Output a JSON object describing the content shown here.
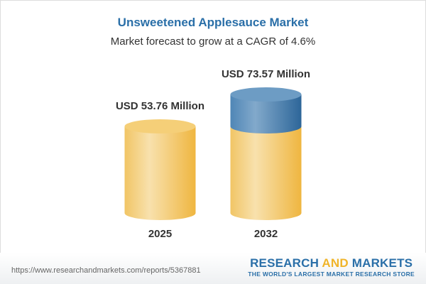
{
  "title": "Unsweetened Applesauce Market",
  "subtitle": "Market forecast to grow at a CAGR of 4.6%",
  "chart_data": {
    "type": "bar",
    "style": "3d-cylinder",
    "categories": [
      "2025",
      "2032"
    ],
    "values": [
      53.76,
      73.57
    ],
    "data_labels": [
      "USD 53.76 Million",
      "USD 73.57 Million"
    ],
    "unit": "USD Million",
    "colors": {
      "base": "#f2c05a",
      "growth": "#4a84b4"
    },
    "grid": false
  },
  "footer": {
    "url": "https://www.researchandmarkets.com/reports/5367881",
    "logo_part1": "RESEARCH ",
    "logo_part2": "AND",
    "logo_part3": " MARKETS",
    "tagline": "THE WORLD'S LARGEST MARKET RESEARCH STORE"
  }
}
